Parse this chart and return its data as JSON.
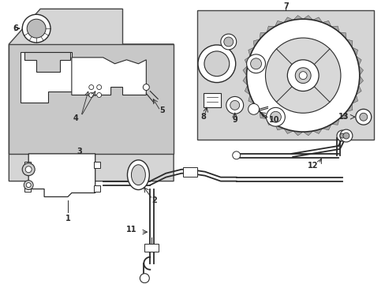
{
  "background_color": "#ffffff",
  "gray_bg": "#d8d8d8",
  "line_color": "#2a2a2a",
  "fig_width": 4.89,
  "fig_height": 3.6,
  "dpi": 100
}
